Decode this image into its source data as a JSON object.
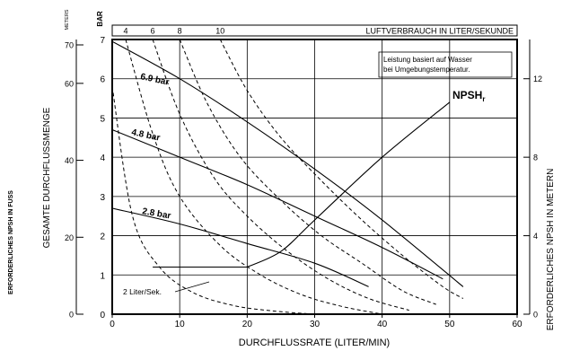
{
  "chart_data": {
    "type": "line",
    "xlabel": "DURCHFLUSSRATE (LITER/MIN)",
    "xlim": [
      0,
      60
    ],
    "x_ticks": [
      "0",
      "10",
      "20",
      "30",
      "40",
      "50",
      "60"
    ],
    "left_ylabel": "GESAMTE DURCHFLUSSMENGE",
    "bar_axis": {
      "unit": "BAR",
      "range": [
        0,
        7
      ],
      "ticks": [
        "0",
        "1",
        "2",
        "3",
        "4",
        "5",
        "6",
        "7"
      ]
    },
    "meters_axis": {
      "unit": "METERS",
      "range": [
        0,
        71.4
      ],
      "ticks": [
        "0",
        "20",
        "40",
        "60",
        "70"
      ]
    },
    "right_ylabel": "ERFORDERLICHES NPSH IN METERN",
    "npsh_axis": {
      "range": [
        0,
        14
      ],
      "ticks": [
        "0",
        "4",
        "8",
        "12"
      ]
    },
    "feet_label": "ERFORDERLICHES NPSH IN FUSS",
    "top_label": "LUFTVERBRAUCH IN LITER/SEKUNDE",
    "top_ticks": [
      "4",
      "6",
      "8",
      "10"
    ],
    "note_lines": [
      "Leistung basiert auf Wasser",
      "bei Umgebungstemperatur."
    ],
    "air_curve_label": "2 Liter/Sek.",
    "npsh_label": "NPSH",
    "npsh_sub": "r",
    "series": [
      {
        "name": "6.9 bar",
        "x": [
          0,
          10,
          20,
          30,
          40,
          52
        ],
        "y": [
          6.95,
          6.0,
          4.9,
          3.7,
          2.4,
          0.7
        ]
      },
      {
        "name": "4.8 bar",
        "x": [
          0,
          10,
          20,
          30,
          40,
          49
        ],
        "y": [
          4.7,
          4.0,
          3.3,
          2.5,
          1.7,
          0.9
        ]
      },
      {
        "name": "2.8 bar",
        "x": [
          0,
          10,
          20,
          30,
          38
        ],
        "y": [
          2.7,
          2.3,
          1.8,
          1.3,
          0.7
        ]
      },
      {
        "name": "NPSH",
        "x": [
          6,
          20,
          25,
          30,
          40,
          50
        ],
        "y_npsh": [
          2.4,
          2.4,
          3.2,
          4.8,
          8.0,
          10.8
        ]
      }
    ],
    "air_curves": [
      {
        "name": "2 Liter/Sek.",
        "x": [
          0,
          3,
          7,
          12,
          18,
          24,
          30
        ],
        "y": [
          5.8,
          2.5,
          1.2,
          0.55,
          0.22,
          0.08,
          0
        ]
      },
      {
        "name": "4",
        "x": [
          2,
          6,
          10,
          16,
          22,
          28,
          34,
          40
        ],
        "y": [
          7,
          4.6,
          3.0,
          1.75,
          1.0,
          0.5,
          0.2,
          0
        ]
      },
      {
        "name": "6",
        "x": [
          6,
          10,
          15,
          20,
          26,
          32,
          38,
          44
        ],
        "y": [
          7,
          5.1,
          3.5,
          2.5,
          1.6,
          0.9,
          0.4,
          0.1
        ]
      },
      {
        "name": "8",
        "x": [
          10,
          14,
          19,
          25,
          31,
          37,
          43,
          48
        ],
        "y": [
          7,
          5.4,
          4.0,
          2.9,
          2.0,
          1.3,
          0.6,
          0.25
        ]
      },
      {
        "name": "10",
        "x": [
          16,
          20,
          25,
          31,
          37,
          43,
          49,
          52
        ],
        "y": [
          7,
          5.7,
          4.5,
          3.4,
          2.4,
          1.5,
          0.7,
          0.4
        ]
      }
    ]
  }
}
